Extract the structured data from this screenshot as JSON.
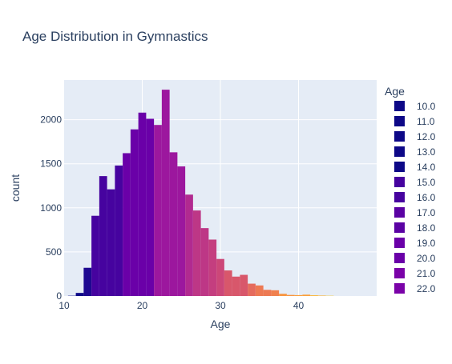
{
  "chart_data": {
    "type": "bar",
    "title": "Age Distribution in Gymnastics",
    "xlabel": "Age",
    "ylabel": "count",
    "xlim": [
      10,
      50
    ],
    "ylim": [
      0,
      2450
    ],
    "x_ticks": [
      10,
      20,
      30,
      40
    ],
    "y_ticks": [
      0,
      500,
      1000,
      1500,
      2000
    ],
    "grid": true,
    "bin_width": 1,
    "legend": {
      "title": "Age",
      "placement": "right",
      "entries": [
        "10.0",
        "11.0",
        "12.0",
        "13.0",
        "14.0",
        "15.0",
        "16.0",
        "17.0",
        "18.0",
        "19.0",
        "20.0",
        "21.0",
        "22.0"
      ]
    },
    "colorscale": [
      "#0d0887",
      "#46039f",
      "#7201a8",
      "#9c179e",
      "#bd3786",
      "#d8576b",
      "#ed7953",
      "#fb9f3a",
      "#fdca26",
      "#f0f921"
    ],
    "bars": [
      {
        "x": 11,
        "value": 3,
        "age": 11.0,
        "color": "#0d0887"
      },
      {
        "x": 12,
        "value": 35,
        "age": 12.0,
        "color": "#0d0887"
      },
      {
        "x": 13,
        "value": 320,
        "age": 13.0,
        "color": "#1e0890"
      },
      {
        "x": 14,
        "value": 910,
        "age": 14.0,
        "color": "#46039f"
      },
      {
        "x": 15,
        "value": 1360,
        "age": 15.0,
        "color": "#46039f"
      },
      {
        "x": 16,
        "value": 1210,
        "age": 16.0,
        "color": "#46039f"
      },
      {
        "x": 17,
        "value": 1480,
        "age": 17.0,
        "color": "#46039f"
      },
      {
        "x": 18,
        "value": 1620,
        "age": 18.0,
        "color": "#6a00a8"
      },
      {
        "x": 19,
        "value": 1890,
        "age": 19.0,
        "color": "#6a00a8"
      },
      {
        "x": 20,
        "value": 2080,
        "age": 20.0,
        "color": "#6a00a8"
      },
      {
        "x": 21,
        "value": 2010,
        "age": 21.0,
        "color": "#6a00a8"
      },
      {
        "x": 22,
        "value": 1940,
        "age": 22.0,
        "color": "#9c179e"
      },
      {
        "x": 23,
        "value": 2340,
        "age": 23.0,
        "color": "#9c179e"
      },
      {
        "x": 24,
        "value": 1630,
        "age": 24.0,
        "color": "#9c179e"
      },
      {
        "x": 25,
        "value": 1470,
        "age": 25.0,
        "color": "#9c179e"
      },
      {
        "x": 26,
        "value": 1150,
        "age": 26.0,
        "color": "#b12a90"
      },
      {
        "x": 27,
        "value": 970,
        "age": 27.0,
        "color": "#bd3786"
      },
      {
        "x": 28,
        "value": 770,
        "age": 28.0,
        "color": "#bd3786"
      },
      {
        "x": 29,
        "value": 640,
        "age": 29.0,
        "color": "#c43e7f"
      },
      {
        "x": 30,
        "value": 420,
        "age": 30.0,
        "color": "#cc4778"
      },
      {
        "x": 31,
        "value": 290,
        "age": 31.0,
        "color": "#d8576b"
      },
      {
        "x": 32,
        "value": 220,
        "age": 32.0,
        "color": "#d8576b"
      },
      {
        "x": 33,
        "value": 240,
        "age": 33.0,
        "color": "#d8576b"
      },
      {
        "x": 34,
        "value": 140,
        "age": 34.0,
        "color": "#e56b5d"
      },
      {
        "x": 35,
        "value": 120,
        "age": 35.0,
        "color": "#ed7953"
      },
      {
        "x": 36,
        "value": 70,
        "age": 36.0,
        "color": "#ed7953"
      },
      {
        "x": 37,
        "value": 65,
        "age": 37.0,
        "color": "#f0804e"
      },
      {
        "x": 38,
        "value": 25,
        "age": 38.0,
        "color": "#f89540"
      },
      {
        "x": 39,
        "value": 12,
        "age": 39.0,
        "color": "#f89540"
      },
      {
        "x": 40,
        "value": 10,
        "age": 40.0,
        "color": "#fb9f3a"
      },
      {
        "x": 41,
        "value": 15,
        "age": 41.0,
        "color": "#fb9f3a"
      },
      {
        "x": 42,
        "value": 8,
        "age": 42.0,
        "color": "#fdb32f"
      },
      {
        "x": 43,
        "value": 5,
        "age": 43.0,
        "color": "#fdb32f"
      },
      {
        "x": 44,
        "value": 3,
        "age": 44.0,
        "color": "#fdca26"
      }
    ]
  }
}
